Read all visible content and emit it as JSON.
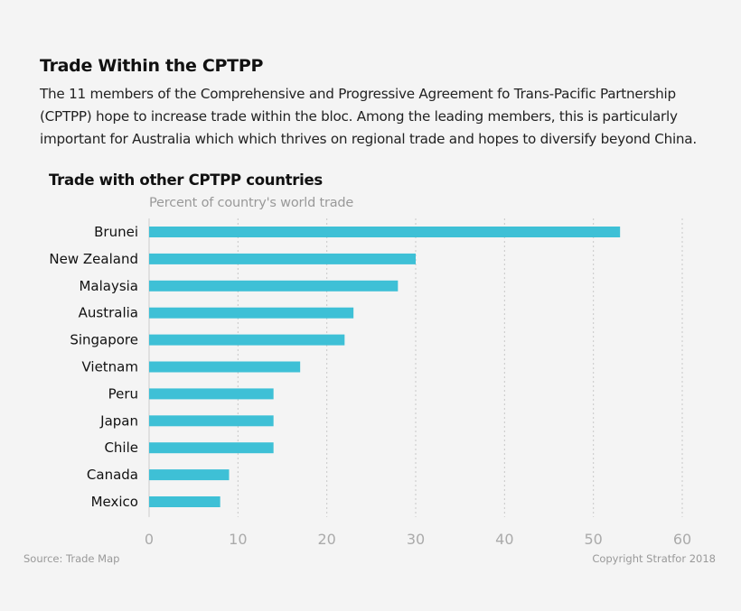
{
  "header": {
    "title": "Trade Within the CPTPP",
    "subtitle": "The 11 members of the Comprehensive and Progressive Agreement fo Trans-Pacific Partnership (CPTPP) hope to increase trade within the bloc. Among the leading members, this is particularly important for Australia which which thrives on regional trade and hopes to diversify beyond China."
  },
  "footer": {
    "source": "Source: Trade Map",
    "copyright": "Copyright Stratfor 2018"
  },
  "chart_data": {
    "type": "bar",
    "orientation": "horizontal",
    "title": "Trade with other CPTPP countries",
    "xlabel": "Percent of country's world trade",
    "categories": [
      "Brunei",
      "New Zealand",
      "Malaysia",
      "Australia",
      "Singapore",
      "Vietnam",
      "Peru",
      "Japan",
      "Chile",
      "Canada",
      "Mexico"
    ],
    "values": [
      53,
      30,
      28,
      23,
      22,
      17,
      14,
      14,
      14,
      9,
      8
    ],
    "xlim": [
      0,
      60
    ],
    "xticks": [
      0,
      10,
      20,
      30,
      40,
      50,
      60
    ],
    "grid": "vertical dotted",
    "bar_color": "#3ec0d6"
  }
}
